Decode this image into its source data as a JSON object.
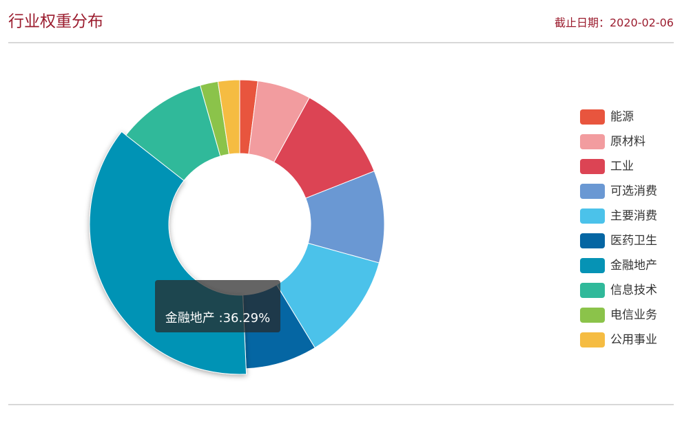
{
  "chart_data": {
    "type": "pie",
    "title": "行业权重分布",
    "subtitle": "截止日期：2020-02-06",
    "categories": [
      "能源",
      "原材料",
      "工业",
      "可选消费",
      "主要消费",
      "医药卫生",
      "金融地产",
      "信息技术",
      "电信业务",
      "公用事业"
    ],
    "values": [
      2,
      6,
      11,
      10.3,
      12,
      8,
      36.29,
      10,
      2,
      2.41
    ],
    "colors": [
      "#e8553e",
      "#f29c9f",
      "#dc4454",
      "#6a98d3",
      "#4bc2ea",
      "#0566a3",
      "#0693b5",
      "#30b99a",
      "#8bc34a",
      "#f5bc42"
    ],
    "donut": true,
    "legend": "right",
    "highlight": 6,
    "tooltip": "金融地产 :36.29%"
  }
}
